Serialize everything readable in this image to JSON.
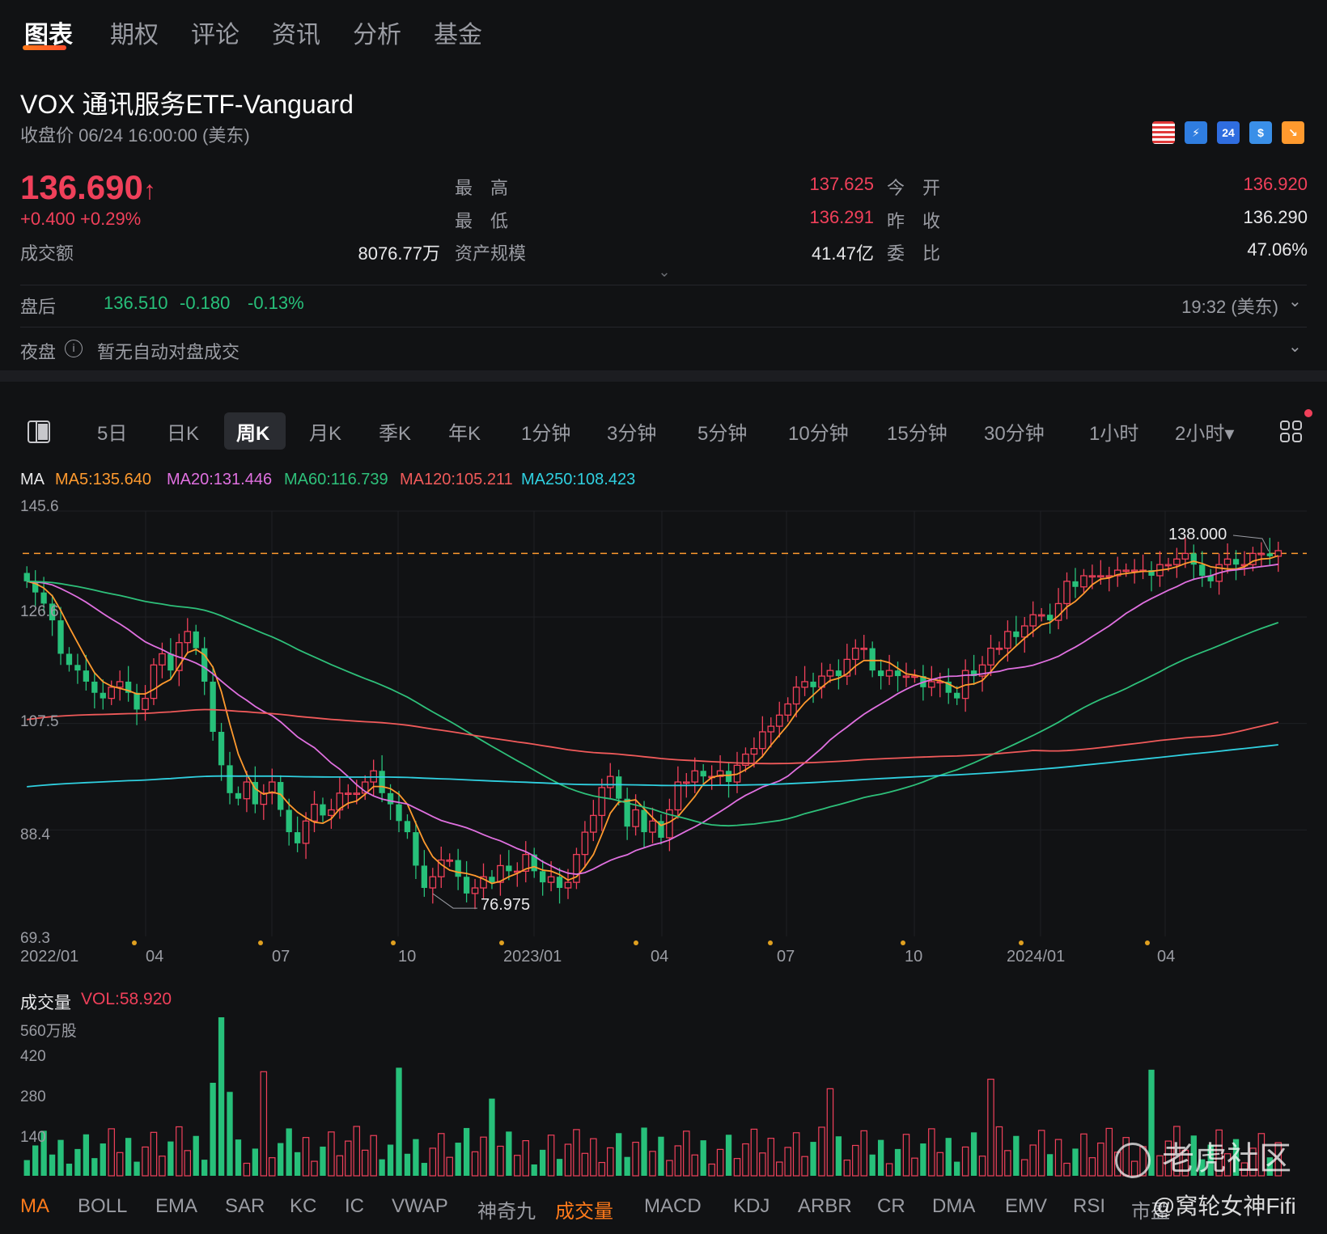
{
  "top_tabs": [
    "图表",
    "期权",
    "评论",
    "资讯",
    "分析",
    "基金"
  ],
  "header": {
    "title": "VOX   通讯服务ETF-Vanguard",
    "subtitle": "收盘价 06/24 16:00:00 (美东)",
    "badges": [
      {
        "name": "us-flag-icon",
        "text": "",
        "color": "#3b6fd8"
      },
      {
        "name": "lightning-icon",
        "text": "⚡",
        "color": "#2f7de0"
      },
      {
        "name": "24h-icon",
        "text": "24",
        "color": "#2f6de0"
      },
      {
        "name": "dollar-icon",
        "text": "$",
        "color": "#3a8fe8"
      },
      {
        "name": "trend-icon",
        "text": "↘",
        "color": "#ff9a2e"
      }
    ]
  },
  "quote": {
    "price": "136.690",
    "arrow": "↑",
    "change": "+0.400  +0.29%",
    "high_label": "最　高",
    "high": "137.625",
    "open_label": "今　开",
    "open": "136.920",
    "low_label": "最　低",
    "low": "136.291",
    "prev_label": "昨　收",
    "prev": "136.290",
    "turnover_label": "成交额",
    "turnover": "8076.77万",
    "aum_label": "资产规模",
    "aum": "41.47亿",
    "ratio_label": "委　比",
    "ratio": "47.06%"
  },
  "after_hours": {
    "label": "盘后",
    "price": "136.510",
    "change": "-0.180",
    "pct": "-0.13%",
    "time": "19:32 (美东)"
  },
  "night": {
    "label": "夜盘",
    "text": "暂无自动对盘成交"
  },
  "period_tabs": [
    "5日",
    "日K",
    "周K",
    "月K",
    "季K",
    "年K",
    "1分钟",
    "3分钟",
    "5分钟",
    "10分钟",
    "15分钟",
    "30分钟",
    "1小时",
    "2小时▾"
  ],
  "period_active": "周K",
  "ma_legend": [
    {
      "text": "MA",
      "color": "#e8e8ea"
    },
    {
      "text": "MA5:135.640",
      "color": "#ff9a2e"
    },
    {
      "text": "MA20:131.446",
      "color": "#e070e0"
    },
    {
      "text": "MA60:116.739",
      "color": "#2ec07a"
    },
    {
      "text": "MA120:105.211",
      "color": "#f05a5a"
    },
    {
      "text": "MA250:108.423",
      "color": "#30d0e0"
    }
  ],
  "colors": {
    "up": "#f0405a",
    "down": "#27c07a",
    "ma5": "#ff9a2e",
    "ma20": "#e070e0",
    "ma60": "#2ec07a",
    "ma120": "#f05a5a",
    "ma250": "#30d0e0"
  },
  "chart_data": {
    "type": "candlestick",
    "y_axis": [
      "145.6",
      "126.6",
      "107.5",
      "88.4",
      "69.3"
    ],
    "ylim": [
      69.3,
      145.6
    ],
    "x_axis": [
      "2022/01",
      "04",
      "07",
      "10",
      "2023/01",
      "04",
      "07",
      "10",
      "2024/01",
      "04"
    ],
    "annotations": {
      "high": "138.000",
      "low": "76.975",
      "last_ref": 138.0
    },
    "weekly_close": [
      133,
      131,
      129,
      126,
      120,
      118,
      117,
      115,
      113,
      112,
      114,
      115,
      113,
      110,
      112,
      118,
      120,
      117,
      122,
      124,
      121,
      115,
      106,
      100,
      95,
      94,
      97,
      93,
      95,
      97,
      92,
      88,
      86,
      90,
      93,
      91,
      92,
      95,
      95,
      95,
      97,
      99,
      95,
      93,
      90,
      88,
      82,
      78,
      80,
      83,
      83,
      80,
      77,
      78,
      80,
      79,
      82,
      81,
      81,
      84,
      81,
      79,
      80,
      78,
      79,
      84,
      88,
      91,
      96,
      98,
      94,
      89,
      92,
      88,
      90,
      87,
      92,
      97,
      97,
      99,
      98,
      98,
      99,
      97,
      100,
      102,
      103,
      106,
      107,
      109,
      111,
      114,
      115,
      114,
      116,
      117,
      116,
      119,
      121,
      121,
      117,
      116,
      117,
      116,
      116,
      116,
      114,
      115,
      115,
      113,
      112,
      117,
      116,
      118,
      121,
      121,
      124,
      123,
      125,
      127,
      127,
      126,
      129,
      133,
      132,
      134,
      134,
      134,
      134,
      135,
      135,
      135,
      135,
      134,
      136,
      136,
      137,
      138,
      136,
      134,
      133,
      136,
      137,
      136,
      136,
      138,
      138,
      137.5,
      138.5
    ],
    "ma5_last": 135.64,
    "ma20_last": 131.446,
    "ma60_last": 116.739,
    "ma120_last": 105.211,
    "ma250_last": 108.423
  },
  "volume": {
    "label": "成交量",
    "vol": "VOL:58.920",
    "y_axis": [
      "560万股",
      "420",
      "280",
      "140"
    ],
    "ylim": [
      0,
      560
    ]
  },
  "bottom_tabs": [
    "MA",
    "BOLL",
    "EMA",
    "SAR",
    "KC",
    "IC",
    "VWAP",
    "神奇九",
    "成交量",
    "MACD",
    "KDJ",
    "ARBR",
    "CR",
    "DMA",
    "EMV",
    "RSI",
    "市盈"
  ],
  "bottom_active": [
    "MA",
    "成交量"
  ],
  "watermark_1": "老虎社区",
  "watermark_2": "@窝轮女神Fifi"
}
